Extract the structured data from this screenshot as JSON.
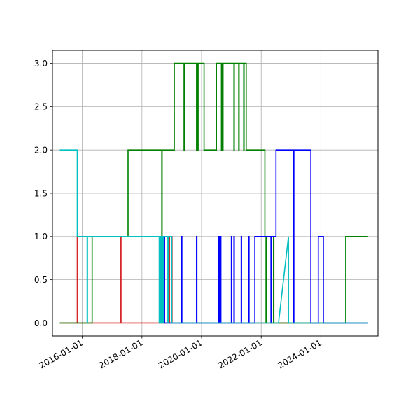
{
  "chart_data": {
    "type": "line",
    "title": "",
    "xlabel": "",
    "ylabel": "",
    "xlim": [
      "2015-01-01",
      "2025-12-01"
    ],
    "ylim": [
      -0.15,
      3.15
    ],
    "grid": true,
    "x_ticks": [
      "2016-01-01",
      "2018-01-01",
      "2020-01-01",
      "2022-01-01",
      "2024-01-01"
    ],
    "y_ticks": [
      0.0,
      0.5,
      1.0,
      1.5,
      2.0,
      2.5,
      3.0
    ],
    "y_tick_labels": [
      "0.0",
      "0.5",
      "1.0",
      "1.5",
      "2.0",
      "2.5",
      "3.0"
    ],
    "series": [
      {
        "color": "#d62728",
        "points": [
          [
            "2015-04-01",
            0
          ],
          [
            "2015-11-01",
            0
          ],
          [
            "2015-11-01",
            1
          ],
          [
            "2015-11-05",
            1
          ],
          [
            "2015-11-05",
            0
          ],
          [
            "2017-04-15",
            0
          ],
          [
            "2017-04-15",
            1
          ],
          [
            "2017-04-20",
            1
          ],
          [
            "2017-04-20",
            0
          ],
          [
            "2018-10-01",
            0
          ],
          [
            "2018-10-01",
            1
          ],
          [
            "2018-10-05",
            1
          ],
          [
            "2018-10-05",
            0
          ],
          [
            "2018-12-01",
            0
          ],
          [
            "2018-12-01",
            1
          ],
          [
            "2018-12-05",
            1
          ],
          [
            "2018-12-05",
            0
          ],
          [
            "2019-01-01",
            0
          ],
          [
            "2019-01-01",
            1
          ],
          [
            "2019-01-05",
            1
          ],
          [
            "2019-01-05",
            0
          ],
          [
            "2022-06-01",
            0
          ],
          [
            "2022-06-01",
            1
          ],
          [
            "2022-06-05",
            1
          ],
          [
            "2022-06-05",
            0
          ],
          [
            "2025-08-01",
            0
          ]
        ]
      },
      {
        "color": "#008000",
        "points": [
          [
            "2015-04-01",
            0
          ],
          [
            "2016-05-01",
            0
          ],
          [
            "2016-05-01",
            1
          ],
          [
            "2017-07-15",
            1
          ],
          [
            "2017-07-15",
            2
          ],
          [
            "2018-09-01",
            2
          ],
          [
            "2018-09-01",
            1
          ],
          [
            "2018-09-05",
            1
          ],
          [
            "2018-09-05",
            2
          ],
          [
            "2019-02-01",
            2
          ],
          [
            "2019-02-01",
            3
          ],
          [
            "2019-06-01",
            3
          ],
          [
            "2019-06-01",
            2
          ],
          [
            "2019-06-05",
            2
          ],
          [
            "2019-06-05",
            3
          ],
          [
            "2019-11-01",
            3
          ],
          [
            "2019-11-01",
            2
          ],
          [
            "2019-11-05",
            2
          ],
          [
            "2019-11-05",
            3
          ],
          [
            "2019-11-15",
            3
          ],
          [
            "2019-11-15",
            2
          ],
          [
            "2019-11-20",
            2
          ],
          [
            "2019-11-20",
            3
          ],
          [
            "2020-02-01",
            3
          ],
          [
            "2020-02-01",
            2
          ],
          [
            "2020-07-01",
            2
          ],
          [
            "2020-07-01",
            3
          ],
          [
            "2020-09-01",
            3
          ],
          [
            "2020-09-01",
            2
          ],
          [
            "2020-09-05",
            2
          ],
          [
            "2020-09-05",
            3
          ],
          [
            "2020-09-15",
            3
          ],
          [
            "2020-09-15",
            2
          ],
          [
            "2020-09-20",
            2
          ],
          [
            "2020-09-20",
            3
          ],
          [
            "2021-02-01",
            3
          ],
          [
            "2021-02-01",
            2
          ],
          [
            "2021-02-05",
            2
          ],
          [
            "2021-02-05",
            3
          ],
          [
            "2021-04-01",
            3
          ],
          [
            "2021-04-01",
            2
          ],
          [
            "2021-04-05",
            2
          ],
          [
            "2021-04-05",
            3
          ],
          [
            "2021-06-01",
            3
          ],
          [
            "2021-06-01",
            2
          ],
          [
            "2021-06-05",
            2
          ],
          [
            "2021-06-05",
            3
          ],
          [
            "2021-07-01",
            3
          ],
          [
            "2021-07-01",
            2
          ],
          [
            "2022-02-15",
            2
          ],
          [
            "2022-02-15",
            1
          ],
          [
            "2022-03-01",
            1
          ],
          [
            "2022-03-01",
            0
          ],
          [
            "2022-03-05",
            0
          ],
          [
            "2022-03-05",
            1
          ],
          [
            "2022-05-01",
            1
          ],
          [
            "2022-05-01",
            0
          ],
          [
            "2022-05-05",
            0
          ],
          [
            "2022-05-05",
            1
          ],
          [
            "2022-06-01",
            1
          ],
          [
            "2022-06-01",
            0
          ],
          [
            "2024-11-01",
            0
          ],
          [
            "2024-11-01",
            1
          ],
          [
            "2025-08-01",
            1
          ]
        ]
      },
      {
        "color": "#0000ff",
        "points": [
          [
            "2018-10-01",
            0
          ],
          [
            "2018-10-01",
            1
          ],
          [
            "2018-10-05",
            1
          ],
          [
            "2018-10-05",
            0
          ],
          [
            "2019-05-01",
            0
          ],
          [
            "2019-05-01",
            1
          ],
          [
            "2019-05-05",
            1
          ],
          [
            "2019-05-05",
            0
          ],
          [
            "2019-11-01",
            0
          ],
          [
            "2019-11-01",
            1
          ],
          [
            "2019-11-05",
            1
          ],
          [
            "2019-11-05",
            0
          ],
          [
            "2020-08-01",
            0
          ],
          [
            "2020-08-01",
            1
          ],
          [
            "2020-08-05",
            1
          ],
          [
            "2020-08-05",
            0
          ],
          [
            "2020-08-20",
            0
          ],
          [
            "2020-08-20",
            1
          ],
          [
            "2020-08-25",
            1
          ],
          [
            "2020-08-25",
            0
          ],
          [
            "2021-01-01",
            0
          ],
          [
            "2021-01-01",
            1
          ],
          [
            "2021-01-05",
            1
          ],
          [
            "2021-01-05",
            0
          ],
          [
            "2021-02-01",
            0
          ],
          [
            "2021-02-01",
            1
          ],
          [
            "2021-02-05",
            1
          ],
          [
            "2021-02-05",
            0
          ],
          [
            "2021-05-01",
            0
          ],
          [
            "2021-05-01",
            1
          ],
          [
            "2021-05-05",
            1
          ],
          [
            "2021-05-05",
            0
          ],
          [
            "2021-08-01",
            0
          ],
          [
            "2021-08-01",
            1
          ],
          [
            "2021-08-05",
            1
          ],
          [
            "2021-08-05",
            0
          ],
          [
            "2021-10-15",
            0
          ],
          [
            "2021-10-15",
            1
          ],
          [
            "2022-05-01",
            1
          ],
          [
            "2022-05-01",
            0
          ],
          [
            "2022-05-05",
            0
          ],
          [
            "2022-05-05",
            1
          ],
          [
            "2022-07-01",
            1
          ],
          [
            "2022-07-01",
            2
          ],
          [
            "2023-02-01",
            2
          ],
          [
            "2023-02-01",
            0
          ],
          [
            "2023-02-05",
            0
          ],
          [
            "2023-02-05",
            2
          ],
          [
            "2023-09-01",
            2
          ],
          [
            "2023-09-01",
            0
          ],
          [
            "2023-12-01",
            0
          ],
          [
            "2023-12-01",
            1
          ],
          [
            "2024-02-01",
            1
          ],
          [
            "2024-02-01",
            0
          ],
          [
            "2025-08-01",
            0
          ]
        ]
      },
      {
        "color": "#00bfbf",
        "points": [
          [
            "2015-04-01",
            2
          ],
          [
            "2015-11-01",
            2
          ],
          [
            "2015-11-01",
            1
          ],
          [
            "2016-03-01",
            1
          ],
          [
            "2016-03-01",
            0
          ],
          [
            "2016-03-05",
            0
          ],
          [
            "2016-03-05",
            1
          ],
          [
            "2018-08-01",
            1
          ],
          [
            "2018-08-01",
            0
          ],
          [
            "2018-08-05",
            0
          ],
          [
            "2018-08-05",
            1
          ],
          [
            "2018-08-15",
            1
          ],
          [
            "2018-08-15",
            0
          ],
          [
            "2018-08-20",
            0
          ],
          [
            "2018-08-20",
            1
          ],
          [
            "2018-09-01",
            1
          ],
          [
            "2018-09-01",
            0
          ],
          [
            "2018-09-05",
            0
          ],
          [
            "2018-09-05",
            1
          ],
          [
            "2018-09-15",
            1
          ],
          [
            "2018-09-15",
            0
          ],
          [
            "2018-09-20",
            0
          ],
          [
            "2018-09-20",
            1
          ],
          [
            "2018-11-15",
            1
          ],
          [
            "2018-11-15",
            0
          ],
          [
            "2018-11-20",
            0
          ],
          [
            "2018-11-20",
            1
          ],
          [
            "2019-01-01",
            1
          ],
          [
            "2019-01-01",
            0
          ],
          [
            "2022-08-01",
            0
          ],
          [
            "2022-12-01",
            1
          ],
          [
            "2022-12-01",
            0
          ],
          [
            "2025-08-01",
            0
          ]
        ]
      }
    ]
  }
}
